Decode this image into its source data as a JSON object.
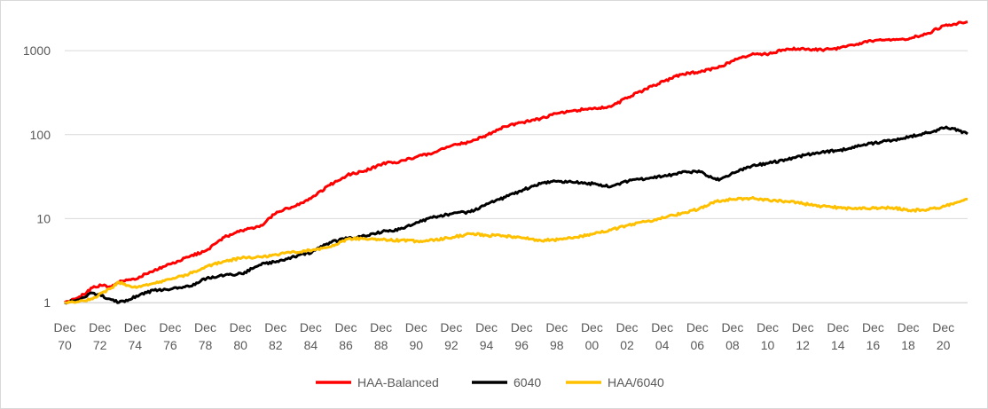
{
  "chart_data": {
    "type": "line",
    "title": "",
    "xlabel": "",
    "ylabel": "",
    "y_scale": "log",
    "ylim": [
      1,
      3000
    ],
    "y_ticks": [
      {
        "value": 1,
        "label": "1"
      },
      {
        "value": 10,
        "label": "10"
      },
      {
        "value": 100,
        "label": "100"
      },
      {
        "value": 1000,
        "label": "1000"
      }
    ],
    "x_range": [
      1970.92,
      2022.3
    ],
    "x_ticks": [
      {
        "value": 1970.92,
        "line1": "Dec",
        "line2": "70"
      },
      {
        "value": 1972.92,
        "line1": "Dec",
        "line2": "72"
      },
      {
        "value": 1974.92,
        "line1": "Dec",
        "line2": "74"
      },
      {
        "value": 1976.92,
        "line1": "Dec",
        "line2": "76"
      },
      {
        "value": 1978.92,
        "line1": "Dec",
        "line2": "78"
      },
      {
        "value": 1980.92,
        "line1": "Dec",
        "line2": "80"
      },
      {
        "value": 1982.92,
        "line1": "Dec",
        "line2": "82"
      },
      {
        "value": 1984.92,
        "line1": "Dec",
        "line2": "84"
      },
      {
        "value": 1986.92,
        "line1": "Dec",
        "line2": "86"
      },
      {
        "value": 1988.92,
        "line1": "Dec",
        "line2": "88"
      },
      {
        "value": 1990.92,
        "line1": "Dec",
        "line2": "90"
      },
      {
        "value": 1992.92,
        "line1": "Dec",
        "line2": "92"
      },
      {
        "value": 1994.92,
        "line1": "Dec",
        "line2": "94"
      },
      {
        "value": 1996.92,
        "line1": "Dec",
        "line2": "96"
      },
      {
        "value": 1998.92,
        "line1": "Dec",
        "line2": "98"
      },
      {
        "value": 2000.92,
        "line1": "Dec",
        "line2": "00"
      },
      {
        "value": 2002.92,
        "line1": "Dec",
        "line2": "02"
      },
      {
        "value": 2004.92,
        "line1": "Dec",
        "line2": "04"
      },
      {
        "value": 2006.92,
        "line1": "Dec",
        "line2": "06"
      },
      {
        "value": 2008.92,
        "line1": "Dec",
        "line2": "08"
      },
      {
        "value": 2010.92,
        "line1": "Dec",
        "line2": "10"
      },
      {
        "value": 2012.92,
        "line1": "Dec",
        "line2": "12"
      },
      {
        "value": 2014.92,
        "line1": "Dec",
        "line2": "14"
      },
      {
        "value": 2016.92,
        "line1": "Dec",
        "line2": "16"
      },
      {
        "value": 2018.92,
        "line1": "Dec",
        "line2": "18"
      },
      {
        "value": 2020.92,
        "line1": "Dec",
        "line2": "20"
      }
    ],
    "grid": "horizontal",
    "legend_position": "bottom",
    "series": [
      {
        "name": "HAA-Balanced",
        "color": "#ff0000",
        "x": [
          1970.92,
          1971.5,
          1972,
          1972.5,
          1973,
          1973.5,
          1974,
          1974.5,
          1975,
          1975.5,
          1976,
          1977,
          1978,
          1979,
          1980,
          1981,
          1982,
          1983,
          1984,
          1985,
          1986,
          1987,
          1988,
          1989,
          1990,
          1991,
          1992,
          1993,
          1994,
          1995,
          1996,
          1997,
          1998,
          1999,
          2000,
          2001,
          2002,
          2003,
          2004,
          2005,
          2006,
          2007,
          2008,
          2009,
          2010,
          2011,
          2012,
          2013,
          2014,
          2015,
          2016,
          2017,
          2018,
          2019,
          2020,
          2021,
          2022.3
        ],
        "y": [
          1.0,
          1.1,
          1.25,
          1.5,
          1.6,
          1.55,
          1.75,
          1.85,
          1.9,
          2.2,
          2.4,
          2.9,
          3.5,
          4.2,
          6.0,
          7.2,
          8.0,
          12.0,
          14.0,
          18.0,
          25.0,
          33.0,
          37.0,
          45.0,
          48.0,
          55.0,
          62.0,
          75.0,
          82.0,
          100.0,
          125.0,
          140.0,
          155.0,
          180.0,
          195.0,
          205.0,
          215.0,
          280.0,
          350.0,
          430.0,
          520.0,
          560.0,
          620.0,
          760.0,
          900.0,
          920.0,
          1050.0,
          1050.0,
          1020.0,
          1070.0,
          1200.0,
          1320.0,
          1350.0,
          1400.0,
          1600.0,
          2000.0,
          2200.0
        ]
      },
      {
        "name": "6040",
        "color": "#000000",
        "x": [
          1970.92,
          1971.5,
          1972,
          1972.5,
          1973,
          1973.5,
          1974,
          1974.5,
          1975,
          1976,
          1977,
          1978,
          1979,
          1980,
          1981,
          1982,
          1983,
          1984,
          1985,
          1986,
          1987,
          1988,
          1989,
          1990,
          1991,
          1992,
          1993,
          1994,
          1995,
          1996,
          1997,
          1998,
          1999,
          2000,
          2001,
          2002,
          2003,
          2004,
          2005,
          2006,
          2007,
          2008,
          2008.3,
          2009,
          2010,
          2011,
          2012,
          2013,
          2014,
          2015,
          2016,
          2017,
          2018,
          2019,
          2020,
          2021,
          2021.5,
          2022.3
        ],
        "y": [
          1.0,
          1.05,
          1.15,
          1.3,
          1.2,
          1.1,
          1.0,
          1.05,
          1.2,
          1.4,
          1.45,
          1.55,
          1.95,
          2.1,
          2.2,
          2.8,
          3.1,
          3.5,
          4.0,
          5.2,
          5.8,
          6.2,
          7.0,
          7.5,
          9.0,
          10.5,
          11.5,
          12.0,
          15.0,
          18.0,
          22.0,
          26.0,
          28.0,
          27.0,
          26.0,
          24.0,
          28.0,
          30.0,
          32.0,
          35.0,
          37.0,
          29.0,
          30.0,
          35.0,
          42.0,
          46.0,
          50.0,
          57.0,
          62.0,
          65.0,
          72.0,
          80.0,
          85.0,
          95.0,
          105.0,
          120.0,
          118.0,
          102.0
        ]
      },
      {
        "name": "HAA/6040",
        "color": "#ffc000",
        "x": [
          1970.92,
          1971.5,
          1972,
          1972.5,
          1973,
          1973.5,
          1974,
          1974.5,
          1975,
          1976,
          1977,
          1978,
          1979,
          1980,
          1981,
          1982,
          1983,
          1984,
          1985,
          1986,
          1987,
          1988,
          1989,
          1990,
          1991,
          1992,
          1993,
          1994,
          1995,
          1996,
          1997,
          1998,
          1999,
          2000,
          2001,
          2002,
          2003,
          2004,
          2005,
          2006,
          2007,
          2008,
          2009,
          2010,
          2011,
          2012,
          2013,
          2014,
          2015,
          2016,
          2017,
          2018,
          2019,
          2020,
          2021,
          2022.3
        ],
        "y": [
          1.0,
          1.0,
          1.05,
          1.1,
          1.3,
          1.45,
          1.75,
          1.6,
          1.5,
          1.7,
          1.9,
          2.2,
          2.7,
          3.1,
          3.4,
          3.5,
          3.7,
          4.0,
          4.2,
          4.6,
          5.7,
          5.8,
          5.6,
          5.5,
          5.4,
          5.6,
          6.0,
          6.6,
          6.3,
          6.2,
          5.9,
          5.5,
          5.6,
          6.0,
          6.6,
          7.3,
          8.4,
          9.2,
          10.2,
          11.5,
          13.0,
          16.0,
          17.0,
          17.5,
          16.5,
          16.0,
          15.0,
          14.0,
          13.5,
          13.0,
          13.3,
          13.5,
          12.5,
          12.8,
          14.0,
          17.0
        ]
      }
    ]
  }
}
